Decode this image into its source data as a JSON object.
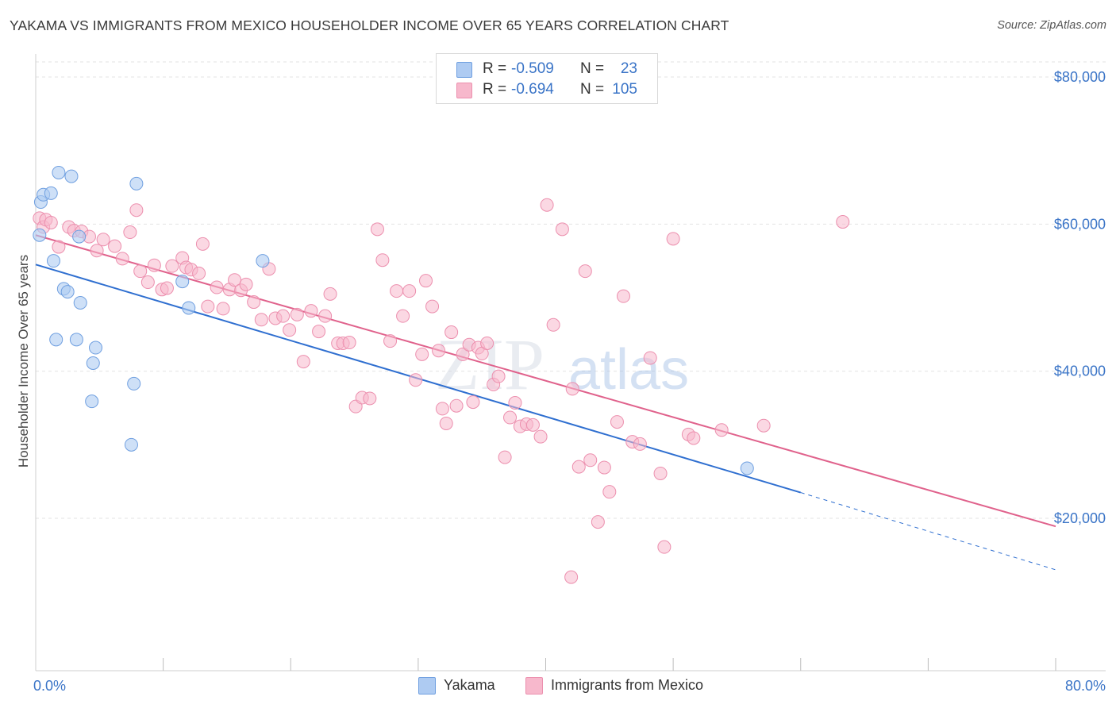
{
  "title": "YAKAMA VS IMMIGRANTS FROM MEXICO HOUSEHOLDER INCOME OVER 65 YEARS CORRELATION CHART",
  "source": "Source: ZipAtlas.com",
  "watermark": {
    "zip": "ZIP",
    "atlas": "atlas"
  },
  "colors": {
    "blue_fill": "#aecbf2",
    "blue_stroke": "#6f9fe0",
    "blue_line": "#2f6fd0",
    "pink_fill": "#f7b8cc",
    "pink_stroke": "#ec8fae",
    "pink_line": "#e0628c",
    "tick_text": "#3a74c7",
    "grid": "#e3e3e3"
  },
  "legend_top": [
    {
      "r_label": "R =",
      "r_value": "-0.509",
      "n_label": "N =",
      "n_value": "23"
    },
    {
      "r_label": "R =",
      "r_value": "-0.694",
      "n_label": "N =",
      "n_value": "105"
    }
  ],
  "chart_data": {
    "type": "scatter",
    "title": "YAKAMA VS IMMIGRANTS FROM MEXICO HOUSEHOLDER INCOME OVER 65 YEARS CORRELATION CHART",
    "xlabel": "",
    "ylabel": "Householder Income Over 65 years",
    "xlim": [
      0,
      80
    ],
    "ylim": [
      1000,
      83000
    ],
    "x_tick_labels": [
      "0.0%",
      "80.0%"
    ],
    "y_ticks": [
      20000,
      40000,
      60000,
      80000
    ],
    "y_tick_labels": [
      "$20,000",
      "$40,000",
      "$60,000",
      "$80,000"
    ],
    "grid": true,
    "legend_position": "bottom",
    "series": [
      {
        "name": "Yakama",
        "color": "#aecbf2",
        "points": [
          [
            0.3,
            58500
          ],
          [
            0.4,
            63000
          ],
          [
            0.6,
            64000
          ],
          [
            1.2,
            64200
          ],
          [
            1.8,
            67000
          ],
          [
            2.8,
            66500
          ],
          [
            1.4,
            55000
          ],
          [
            2.2,
            51200
          ],
          [
            2.5,
            50800
          ],
          [
            3.5,
            49300
          ],
          [
            1.6,
            44300
          ],
          [
            3.2,
            44300
          ],
          [
            4.7,
            43200
          ],
          [
            4.5,
            41100
          ],
          [
            4.4,
            35900
          ],
          [
            7.7,
            38300
          ],
          [
            7.5,
            30000
          ],
          [
            7.9,
            65500
          ],
          [
            3.4,
            58300
          ],
          [
            11.5,
            52200
          ],
          [
            12.0,
            48600
          ],
          [
            17.8,
            55000
          ],
          [
            55.8,
            26800
          ]
        ],
        "trend": {
          "x0": 0,
          "y0": 54500,
          "x1": 60,
          "y1": 23500,
          "dash_x1": 80,
          "dash_y1": 13000
        }
      },
      {
        "name": "Immigrants from Mexico",
        "color": "#f7b8cc",
        "points": [
          [
            0.3,
            60800
          ],
          [
            0.6,
            59600
          ],
          [
            0.8,
            60600
          ],
          [
            1.2,
            60200
          ],
          [
            1.8,
            56900
          ],
          [
            2.6,
            59600
          ],
          [
            3.0,
            59100
          ],
          [
            3.6,
            59000
          ],
          [
            4.2,
            58300
          ],
          [
            4.8,
            56400
          ],
          [
            5.3,
            57900
          ],
          [
            6.2,
            57000
          ],
          [
            6.8,
            55300
          ],
          [
            7.4,
            58900
          ],
          [
            7.9,
            61900
          ],
          [
            8.2,
            53600
          ],
          [
            8.8,
            52100
          ],
          [
            9.3,
            54400
          ],
          [
            9.9,
            51100
          ],
          [
            10.3,
            51300
          ],
          [
            10.7,
            54300
          ],
          [
            11.5,
            55400
          ],
          [
            11.8,
            54100
          ],
          [
            12.2,
            53800
          ],
          [
            12.8,
            53300
          ],
          [
            13.1,
            57300
          ],
          [
            13.5,
            48800
          ],
          [
            14.2,
            51400
          ],
          [
            14.7,
            48500
          ],
          [
            15.2,
            51100
          ],
          [
            15.6,
            52400
          ],
          [
            16.1,
            51000
          ],
          [
            16.5,
            51800
          ],
          [
            17.1,
            49400
          ],
          [
            17.7,
            47000
          ],
          [
            18.3,
            53900
          ],
          [
            18.8,
            47200
          ],
          [
            19.4,
            47500
          ],
          [
            19.9,
            45600
          ],
          [
            20.5,
            47700
          ],
          [
            21.0,
            41300
          ],
          [
            21.6,
            48200
          ],
          [
            22.2,
            45400
          ],
          [
            22.7,
            47500
          ],
          [
            23.1,
            50500
          ],
          [
            23.7,
            43800
          ],
          [
            24.1,
            43800
          ],
          [
            24.6,
            43900
          ],
          [
            25.1,
            35200
          ],
          [
            25.6,
            36400
          ],
          [
            26.2,
            36300
          ],
          [
            26.8,
            59300
          ],
          [
            27.2,
            55100
          ],
          [
            27.8,
            44100
          ],
          [
            28.3,
            50900
          ],
          [
            28.8,
            47500
          ],
          [
            29.3,
            50900
          ],
          [
            29.8,
            38800
          ],
          [
            30.3,
            42300
          ],
          [
            30.6,
            52300
          ],
          [
            31.1,
            48800
          ],
          [
            31.6,
            42800
          ],
          [
            31.9,
            34900
          ],
          [
            32.2,
            32900
          ],
          [
            32.6,
            45300
          ],
          [
            33.0,
            35300
          ],
          [
            33.5,
            42300
          ],
          [
            34.0,
            43600
          ],
          [
            34.3,
            35800
          ],
          [
            34.7,
            43200
          ],
          [
            35.0,
            42400
          ],
          [
            35.4,
            43800
          ],
          [
            35.9,
            38200
          ],
          [
            36.3,
            39300
          ],
          [
            36.8,
            28300
          ],
          [
            37.2,
            33700
          ],
          [
            37.6,
            35700
          ],
          [
            38.0,
            32500
          ],
          [
            38.5,
            32800
          ],
          [
            39.0,
            32700
          ],
          [
            39.6,
            31100
          ],
          [
            40.1,
            62600
          ],
          [
            40.6,
            46300
          ],
          [
            41.3,
            59300
          ],
          [
            42.1,
            37600
          ],
          [
            42.6,
            27000
          ],
          [
            43.1,
            53600
          ],
          [
            43.5,
            27900
          ],
          [
            44.1,
            19500
          ],
          [
            44.6,
            26900
          ],
          [
            45.0,
            23600
          ],
          [
            45.6,
            33100
          ],
          [
            46.1,
            50200
          ],
          [
            46.8,
            30400
          ],
          [
            47.4,
            30100
          ],
          [
            48.2,
            41800
          ],
          [
            49.0,
            26100
          ],
          [
            49.3,
            16100
          ],
          [
            50.0,
            58000
          ],
          [
            51.2,
            31400
          ],
          [
            51.6,
            30900
          ],
          [
            53.8,
            32000
          ],
          [
            57.1,
            32600
          ],
          [
            63.3,
            60300
          ],
          [
            42.0,
            12000
          ]
        ],
        "trend": {
          "x0": 0,
          "y0": 58500,
          "x1": 80,
          "y1": 18900
        }
      }
    ]
  },
  "bottom_legend": [
    {
      "label": "Yakama"
    },
    {
      "label": "Immigrants from Mexico"
    }
  ]
}
